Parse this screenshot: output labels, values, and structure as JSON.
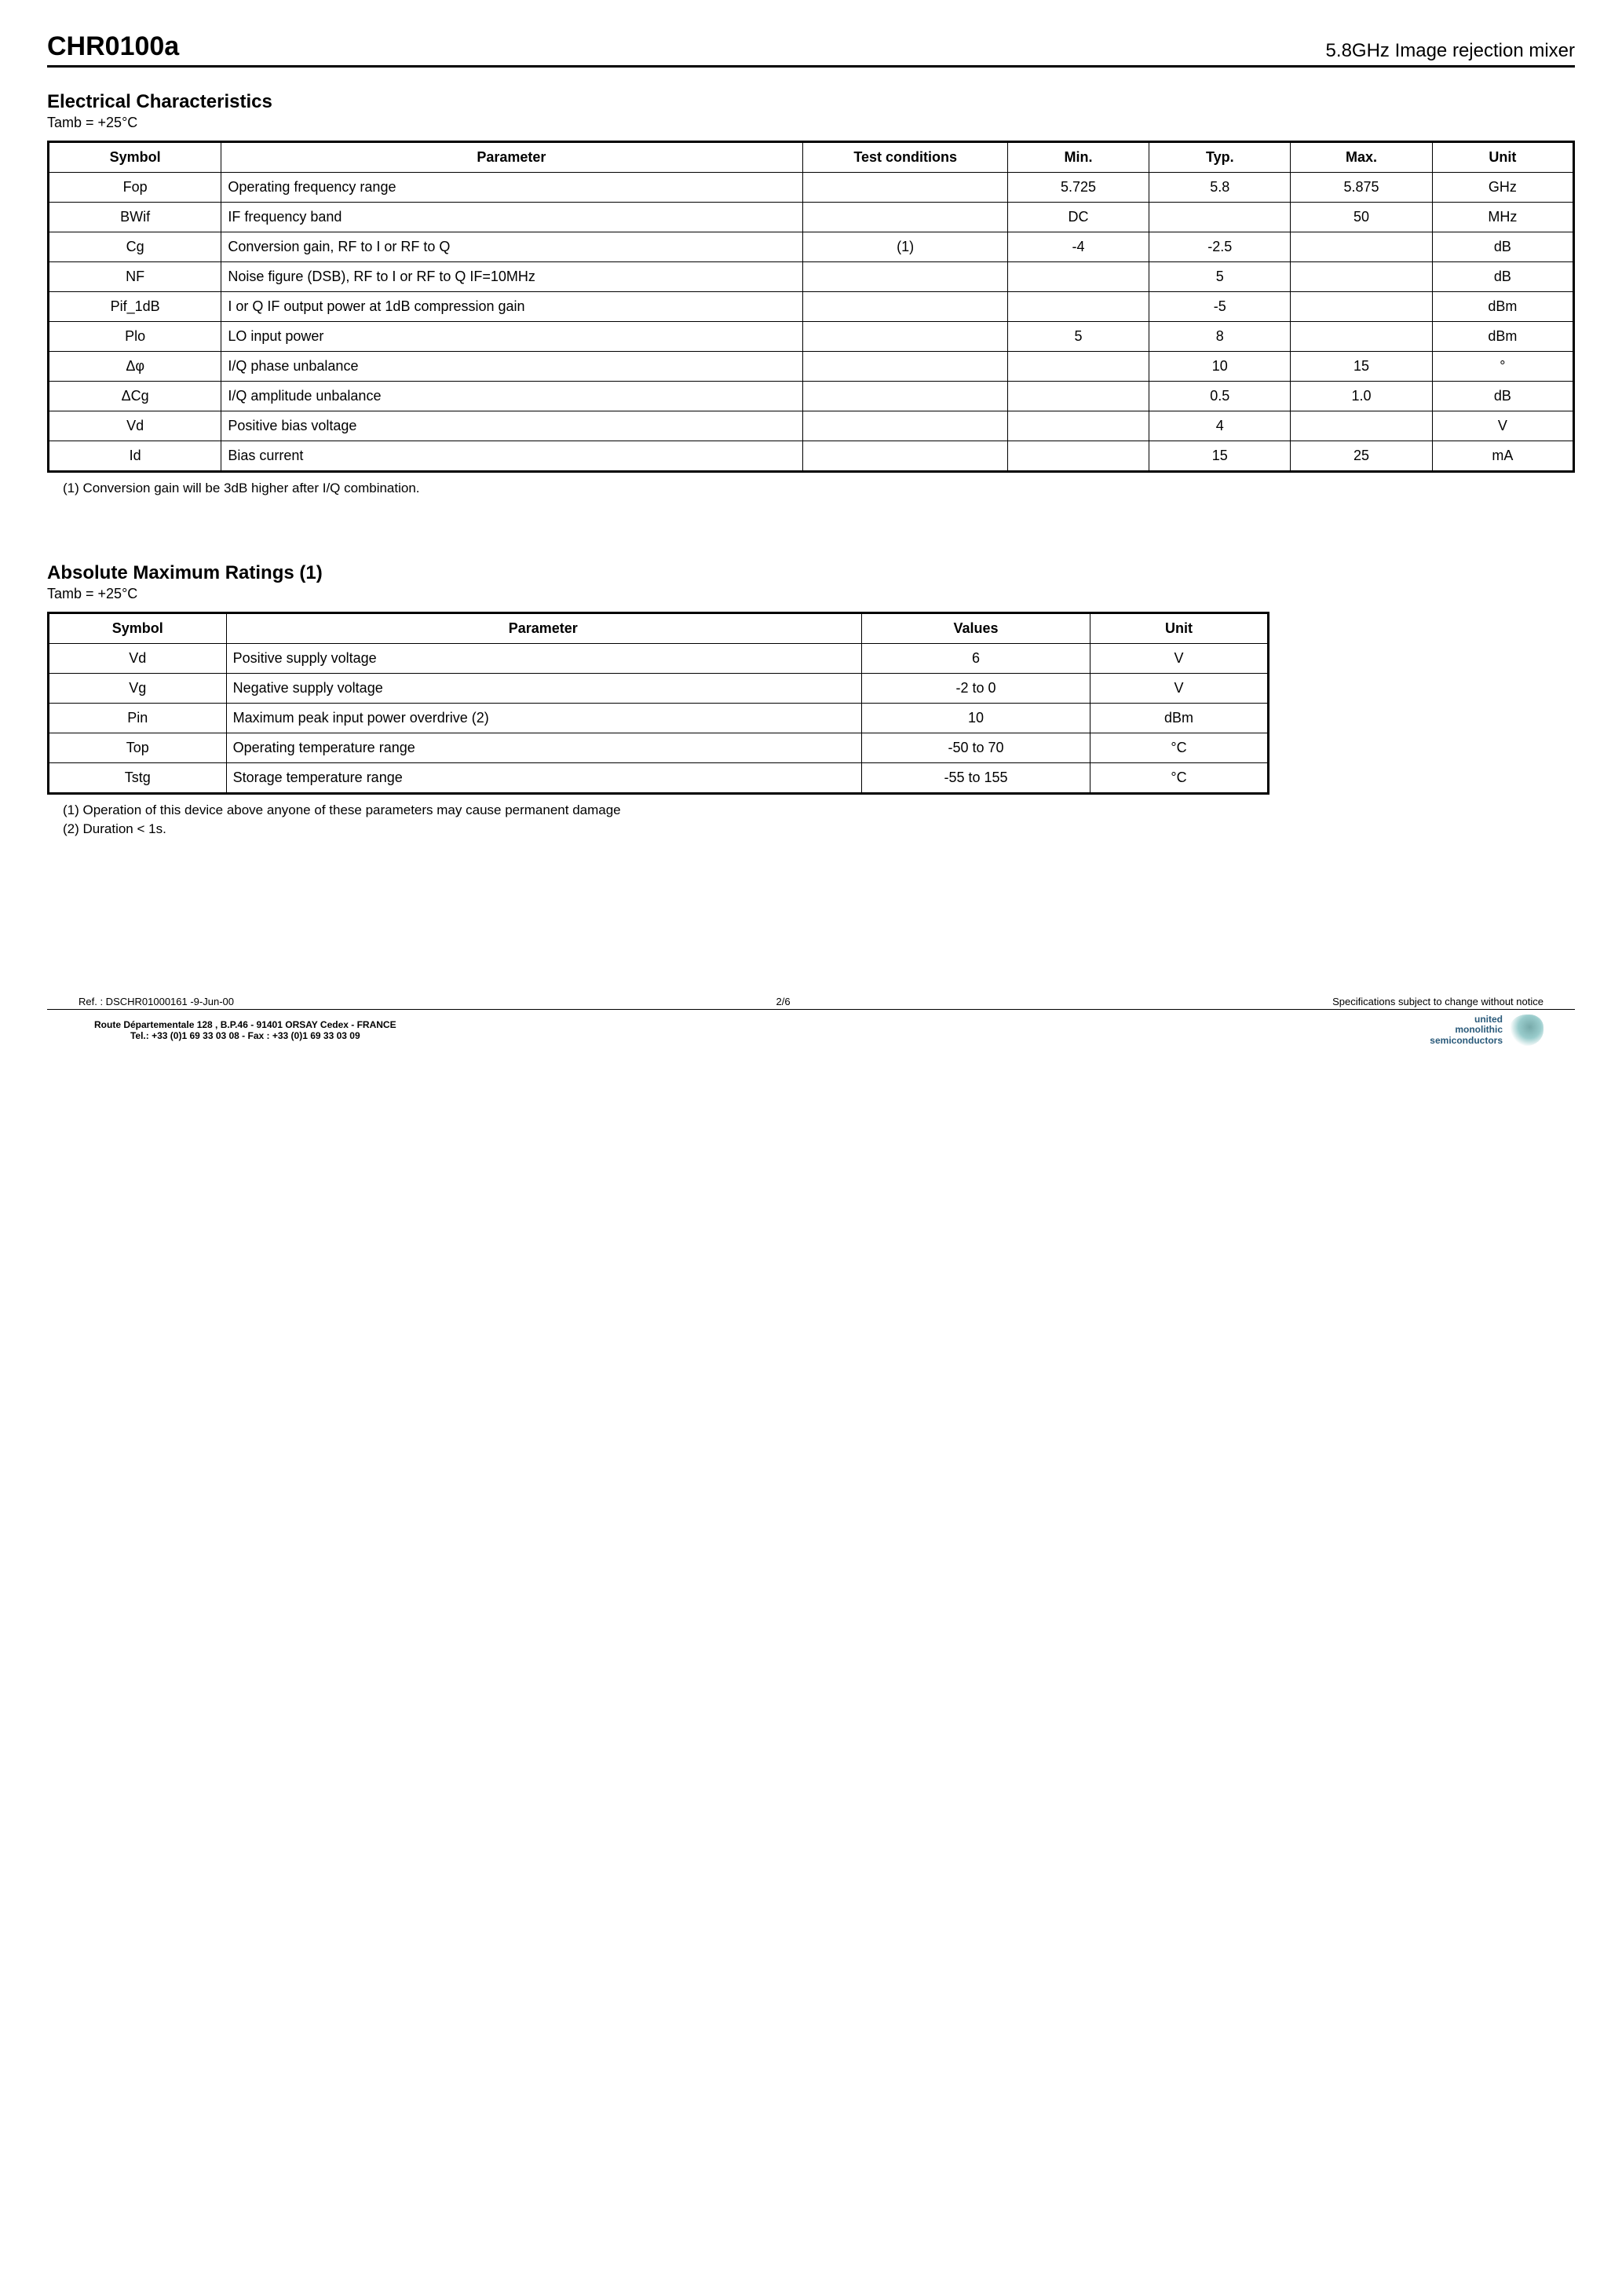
{
  "header": {
    "left": "CHR0100a",
    "right": "5.8GHz Image rejection mixer"
  },
  "section1": {
    "title": "Electrical Characteristics",
    "sub": "Tamb = +25°C",
    "headers": [
      "Symbol",
      "Parameter",
      "Test conditions",
      "Min.",
      "Typ.",
      "Max.",
      "Unit"
    ],
    "rows": [
      {
        "sym": "Fop",
        "param": "Operating frequency range",
        "test": "",
        "min": "5.725",
        "typ": "5.8",
        "max": "5.875",
        "unit": "GHz"
      },
      {
        "sym": "BWif",
        "param": "IF frequency band",
        "test": "",
        "min": "DC",
        "typ": "",
        "max": "50",
        "unit": "MHz"
      },
      {
        "sym": "Cg",
        "param": "Conversion gain, RF to I or RF to Q",
        "test": "(1)",
        "min": "-4",
        "typ": "-2.5",
        "max": "",
        "unit": "dB"
      },
      {
        "sym": "NF",
        "param": "Noise figure (DSB), RF to I or RF to Q IF=10MHz",
        "test": "",
        "min": "",
        "typ": "5",
        "max": "",
        "unit": "dB"
      },
      {
        "sym": "Pif_1dB",
        "param": "I or Q IF output power at 1dB compression gain",
        "test": "",
        "min": "",
        "typ": "-5",
        "max": "",
        "unit": "dBm"
      },
      {
        "sym": "Plo",
        "param": "LO input power",
        "test": "",
        "min": "5",
        "typ": "8",
        "max": "",
        "unit": "dBm"
      },
      {
        "sym": "Δφ",
        "param": "I/Q phase unbalance",
        "test": "",
        "min": "",
        "typ": "10",
        "max": "15",
        "unit": "°"
      },
      {
        "sym": "ΔCg",
        "param": "I/Q amplitude unbalance",
        "test": "",
        "min": "",
        "typ": "0.5",
        "max": "1.0",
        "unit": "dB"
      },
      {
        "sym": "Vd",
        "param": "Positive bias voltage",
        "test": "",
        "min": "",
        "typ": "4",
        "max": "",
        "unit": "V"
      },
      {
        "sym": "Id",
        "param": "Bias current",
        "test": "",
        "min": "",
        "typ": "15",
        "max": "25",
        "unit": "mA"
      }
    ],
    "note": "(1) Conversion gain will be 3dB higher after I/Q combination."
  },
  "section2": {
    "title": "Absolute Maximum Ratings (1)",
    "sub": "Tamb = +25°C",
    "headers": [
      "Symbol",
      "Parameter",
      "Values",
      "Unit"
    ],
    "rows": [
      {
        "sym": "Vd",
        "param": "Positive supply voltage",
        "val": "6",
        "unit": "V"
      },
      {
        "sym": "Vg",
        "param": "Negative supply voltage",
        "val": "-2 to 0",
        "unit": "V"
      },
      {
        "sym": "Pin",
        "param": "Maximum peak input power overdrive (2)",
        "val": "10",
        "unit": "dBm"
      },
      {
        "sym": "Top",
        "param": "Operating temperature range",
        "val": "-50 to 70",
        "unit": "°C"
      },
      {
        "sym": "Tstg",
        "param": "Storage temperature range",
        "val": "-55 to 155",
        "unit": "°C"
      }
    ],
    "note1": "(1) Operation of this device above anyone of these parameters may cause permanent damage",
    "note2": "(2) Duration < 1s."
  },
  "footer": {
    "ref": "Ref. : DSCHR01000161 -9-Jun-00",
    "page": "2/6",
    "disclaimer": "Specifications subject to change without notice",
    "addr1": "Route Départementale 128 ,  B.P.46 - 91401 ORSAY Cedex - FRANCE",
    "addr2": "Tel.:  +33 (0)1 69 33 03 08 - Fax :  +33  (0)1 69 33 03 09",
    "logo1": "united",
    "logo2": "monolithic",
    "logo3": "semiconductors"
  }
}
